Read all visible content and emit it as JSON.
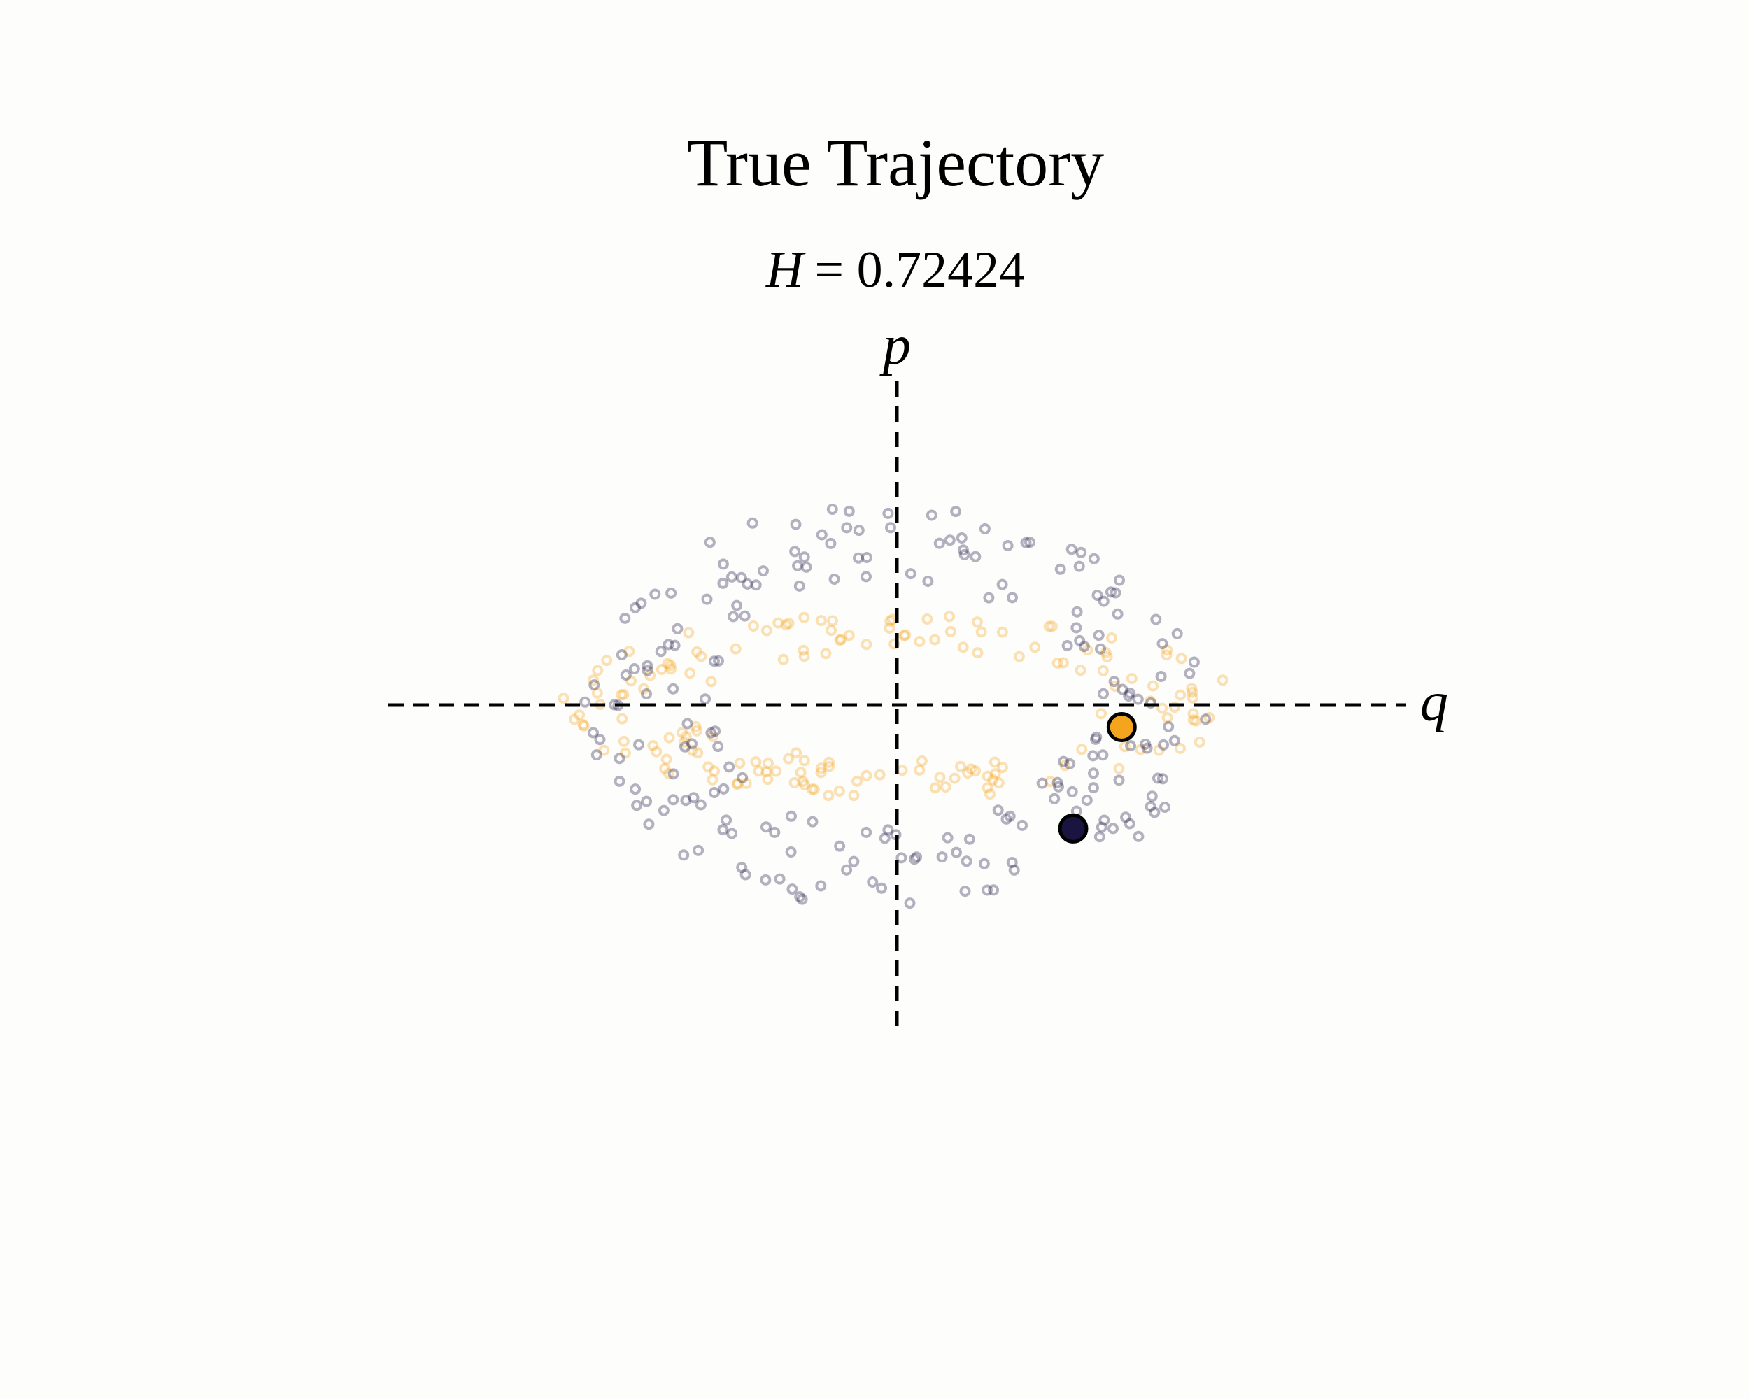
{
  "chart_data": {
    "type": "scatter",
    "title": "True Trajectory",
    "subtitle": "H = 0.72424",
    "subtitle_var": "H",
    "subtitle_value": "= 0.72424",
    "xlabel": "q",
    "ylabel": "p",
    "xlim": [
      -1.15,
      1.15
    ],
    "ylim": [
      -0.73,
      0.73
    ],
    "grid": false,
    "colors": {
      "body1": "#f5a51d",
      "body2": "#1a1440",
      "background": "#fdfdfb"
    },
    "series": [
      {
        "role": "body1",
        "trail_rx": 0.77,
        "trail_ry": 0.21,
        "trail_n": 170,
        "current": [
          0.51,
          -0.05
        ]
      },
      {
        "role": "body2",
        "trail_rx": 0.71,
        "trail_ry": 0.47,
        "trail_n": 210,
        "current": [
          0.4,
          -0.28
        ]
      }
    ]
  }
}
